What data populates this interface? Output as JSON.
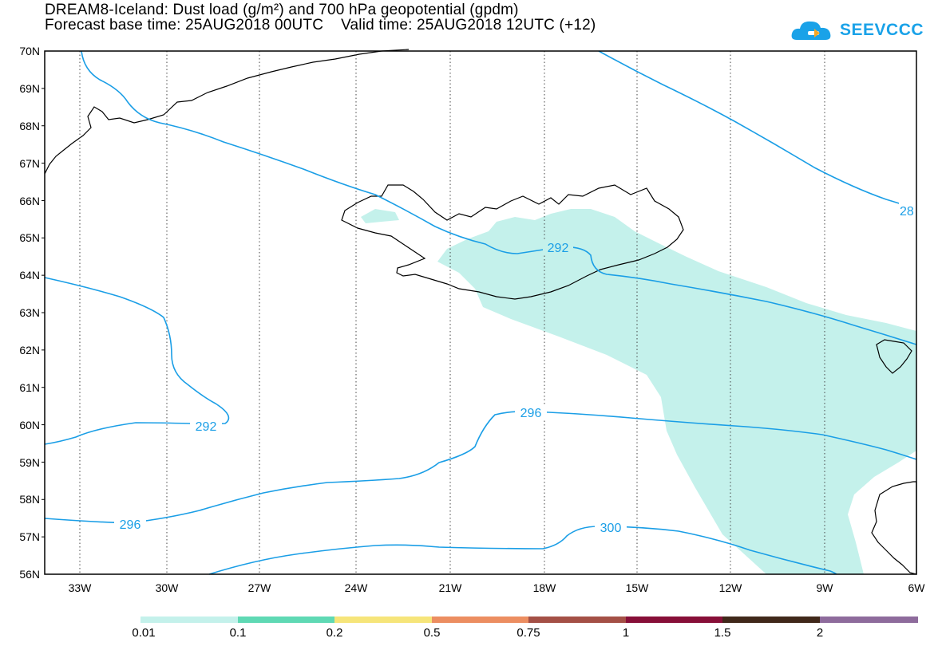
{
  "header": {
    "line1": "DREAM8-Iceland: Dust load (g/m²) and 700 hPa geopotential (gpdm)",
    "line2": "Forecast base time: 25AUG2018 00UTC    Valid time: 25AUG2018 12UTC (+12)"
  },
  "logo": {
    "text": "SEEVCCC",
    "color": "#1aa2e8",
    "icon": "cloud-logo-icon"
  },
  "map": {
    "lon_ticks": [
      "33W",
      "30W",
      "27W",
      "24W",
      "21W",
      "18W",
      "15W",
      "12W",
      "9W",
      "6W"
    ],
    "lat_ticks": [
      "70N",
      "69N",
      "68N",
      "67N",
      "66N",
      "65N",
      "64N",
      "63N",
      "62N",
      "61N",
      "60N",
      "59N",
      "58N",
      "57N",
      "56N"
    ],
    "contour_color": "#1a9ee6",
    "dust_color": "#c4f1eb",
    "contour_labels": [
      "292",
      "292",
      "296",
      "296",
      "300",
      "28"
    ]
  },
  "colorbar": {
    "colors": [
      "#c4f1eb",
      "#5fd9b4",
      "#f6e57a",
      "#ec8e61",
      "#a45046",
      "#870f38",
      "#40281a",
      "#8e6b9c"
    ],
    "labels": [
      "0.01",
      "0.1",
      "0.2",
      "0.5",
      "0.75",
      "1",
      "1.5",
      "2"
    ]
  }
}
